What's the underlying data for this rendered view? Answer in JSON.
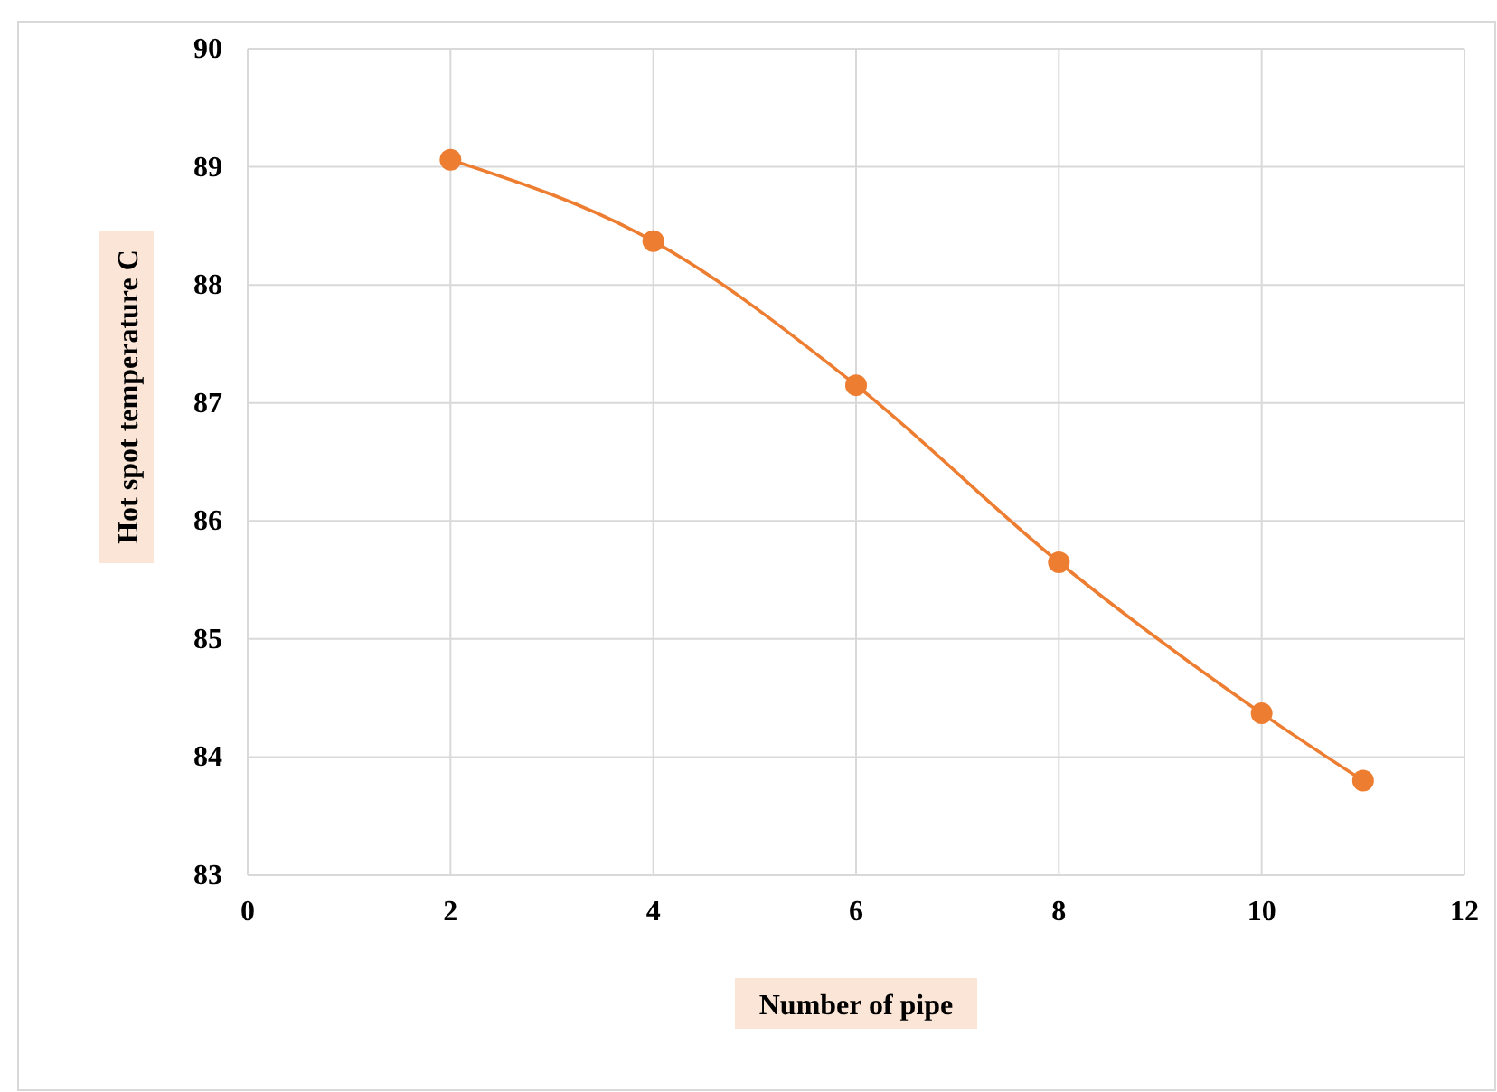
{
  "chart_data": {
    "type": "line",
    "xlabel": "Number of pipe",
    "ylabel": "Hot spot temperature C",
    "x": [
      2,
      4,
      6,
      8,
      10,
      11
    ],
    "series": [
      {
        "color": "#ed7d31",
        "values": [
          89.06,
          88.37,
          87.15,
          85.65,
          84.37,
          83.8
        ]
      }
    ],
    "xlim": [
      0,
      12
    ],
    "xticks": [
      0,
      2,
      4,
      6,
      8,
      10,
      12
    ],
    "ylim": [
      83,
      90
    ],
    "yticks": [
      83,
      84,
      85,
      86,
      87,
      88,
      89,
      90
    ],
    "grid": true,
    "marker": "circle",
    "line_style": "solid"
  }
}
